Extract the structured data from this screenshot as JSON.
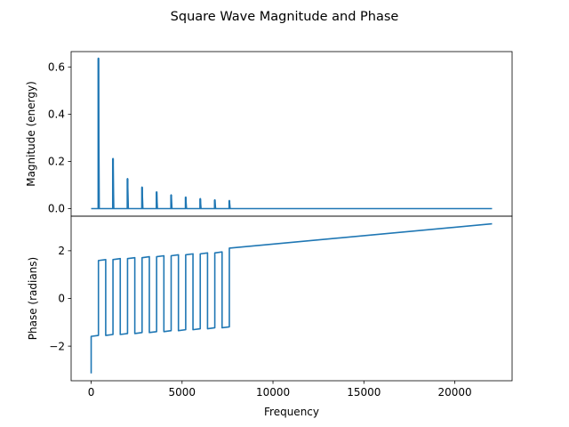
{
  "chart_data": [
    {
      "type": "line",
      "title": "Square Wave Magnitude and Phase",
      "xlabel": "",
      "ylabel": "Magnitude (energy)",
      "xlim": [
        -1102,
        23152
      ],
      "ylim": [
        -0.032,
        0.665
      ],
      "yticks": [
        0.0,
        0.2,
        0.4,
        0.6
      ],
      "ytick_labels": [
        "0.0",
        "0.2",
        "0.4",
        "0.6"
      ],
      "xticks": [],
      "color": "#1f77b4",
      "grid": false,
      "spikes": [
        {
          "x": 400,
          "y": 0.637
        },
        {
          "x": 1200,
          "y": 0.212
        },
        {
          "x": 2000,
          "y": 0.127
        },
        {
          "x": 2800,
          "y": 0.091
        },
        {
          "x": 3600,
          "y": 0.071
        },
        {
          "x": 4400,
          "y": 0.058
        },
        {
          "x": 5200,
          "y": 0.049
        },
        {
          "x": 6000,
          "y": 0.042
        },
        {
          "x": 6800,
          "y": 0.037
        },
        {
          "x": 7600,
          "y": 0.034
        }
      ],
      "x_end": 22050
    },
    {
      "type": "line",
      "xlabel": "Frequency",
      "ylabel": "Phase (radians)",
      "xlim": [
        -1102,
        23152
      ],
      "ylim": [
        -3.45,
        3.45
      ],
      "yticks": [
        -2,
        0,
        2
      ],
      "ytick_labels": [
        "−2",
        "0",
        "2"
      ],
      "xticks": [
        0,
        5000,
        10000,
        15000,
        20000
      ],
      "xtick_labels": [
        "0",
        "5000",
        "10000",
        "15000",
        "20000"
      ],
      "color": "#1f77b4",
      "grid": false,
      "points": [
        [
          0,
          -3.14
        ],
        [
          0,
          -1.59
        ],
        [
          400,
          -1.55
        ],
        [
          400,
          1.59
        ],
        [
          800,
          1.63
        ],
        [
          800,
          -1.55
        ],
        [
          1200,
          -1.51
        ],
        [
          1200,
          1.63
        ],
        [
          1600,
          1.67
        ],
        [
          1600,
          -1.51
        ],
        [
          2000,
          -1.47
        ],
        [
          2000,
          1.67
        ],
        [
          2400,
          1.71
        ],
        [
          2400,
          -1.47
        ],
        [
          2800,
          -1.43
        ],
        [
          2800,
          1.71
        ],
        [
          3200,
          1.75
        ],
        [
          3200,
          -1.43
        ],
        [
          3600,
          -1.39
        ],
        [
          3600,
          1.75
        ],
        [
          4000,
          1.79
        ],
        [
          4000,
          -1.39
        ],
        [
          4400,
          -1.35
        ],
        [
          4400,
          1.79
        ],
        [
          4800,
          1.83
        ],
        [
          4800,
          -1.35
        ],
        [
          5200,
          -1.31
        ],
        [
          5200,
          1.83
        ],
        [
          5600,
          1.87
        ],
        [
          5600,
          -1.31
        ],
        [
          6000,
          -1.27
        ],
        [
          6000,
          1.87
        ],
        [
          6400,
          1.91
        ],
        [
          6400,
          -1.27
        ],
        [
          6800,
          -1.23
        ],
        [
          6800,
          1.91
        ],
        [
          7200,
          1.95
        ],
        [
          7200,
          -1.23
        ],
        [
          7600,
          -1.19
        ],
        [
          7600,
          2.11
        ],
        [
          22050,
          3.13
        ]
      ]
    }
  ]
}
